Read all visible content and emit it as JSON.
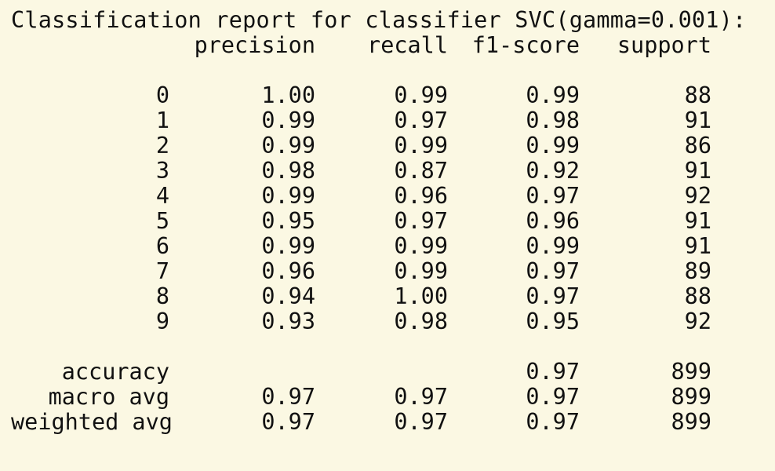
{
  "title": "Classification report for classifier SVC(gamma=0.001):",
  "headers": {
    "precision": "precision",
    "recall": "recall",
    "f1": "f1-score",
    "support": "support"
  },
  "rows": [
    {
      "label": "0",
      "precision": "1.00",
      "recall": "0.99",
      "f1": "0.99",
      "support": "88"
    },
    {
      "label": "1",
      "precision": "0.99",
      "recall": "0.97",
      "f1": "0.98",
      "support": "91"
    },
    {
      "label": "2",
      "precision": "0.99",
      "recall": "0.99",
      "f1": "0.99",
      "support": "86"
    },
    {
      "label": "3",
      "precision": "0.98",
      "recall": "0.87",
      "f1": "0.92",
      "support": "91"
    },
    {
      "label": "4",
      "precision": "0.99",
      "recall": "0.96",
      "f1": "0.97",
      "support": "92"
    },
    {
      "label": "5",
      "precision": "0.95",
      "recall": "0.97",
      "f1": "0.96",
      "support": "91"
    },
    {
      "label": "6",
      "precision": "0.99",
      "recall": "0.99",
      "f1": "0.99",
      "support": "91"
    },
    {
      "label": "7",
      "precision": "0.96",
      "recall": "0.99",
      "f1": "0.97",
      "support": "89"
    },
    {
      "label": "8",
      "precision": "0.94",
      "recall": "1.00",
      "f1": "0.97",
      "support": "88"
    },
    {
      "label": "9",
      "precision": "0.93",
      "recall": "0.98",
      "f1": "0.95",
      "support": "92"
    }
  ],
  "summary": [
    {
      "label": "accuracy",
      "precision": "",
      "recall": "",
      "f1": "0.97",
      "support": "899"
    },
    {
      "label": "macro avg",
      "precision": "0.97",
      "recall": "0.97",
      "f1": "0.97",
      "support": "899"
    },
    {
      "label": "weighted avg",
      "precision": "0.97",
      "recall": "0.97",
      "f1": "0.97",
      "support": "899"
    }
  ]
}
